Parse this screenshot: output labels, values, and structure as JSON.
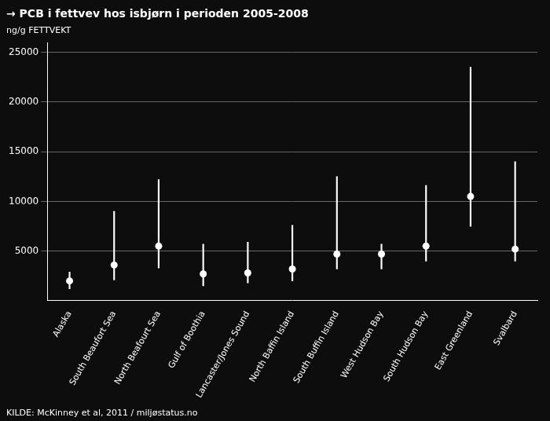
{
  "chart_data": {
    "type": "scatter",
    "title": "→ PCB i fettvev hos isbjørn i perioden 2005-2008",
    "ylabel": "ng/g FETTVEKT",
    "source": "KILDE: McKinney et al, 2011 / miljøstatus.no",
    "categories": [
      "Alaska",
      "South Beaufort Sea",
      "North Beafourt Sea",
      "Gulf of Boothia",
      "Lancaster/Jones Sound",
      "North Baffin Island",
      "South Buffin Island",
      "West Hudson Bay",
      "South Hudson Bay",
      "East Greenland",
      "Svalbard"
    ],
    "values": [
      2000,
      3600,
      5500,
      2700,
      2800,
      3200,
      4700,
      4700,
      5500,
      10500,
      5200
    ],
    "lower": [
      1200,
      2100,
      3300,
      1500,
      1800,
      2000,
      3200,
      3200,
      4000,
      7500,
      4000
    ],
    "upper": [
      2900,
      9000,
      12200,
      5700,
      5900,
      7600,
      12500,
      5700,
      11600,
      23500,
      14000
    ],
    "color": "#ffffff",
    "ylim": [
      0,
      26000
    ],
    "yticks": [
      5000,
      10000,
      15000,
      20000,
      25000
    ],
    "grid": true
  }
}
